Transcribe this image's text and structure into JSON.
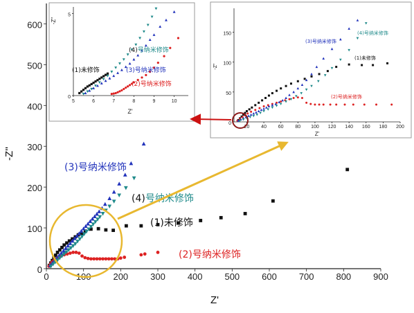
{
  "chart_data": [
    {
      "id": "main",
      "type": "scatter",
      "xlabel": "Z'",
      "ylabel": "-Z''",
      "xlim": [
        0,
        900
      ],
      "ylim": [
        0,
        650
      ],
      "xticks": [
        0,
        100,
        200,
        300,
        400,
        500,
        600,
        700,
        800,
        900
      ],
      "yticks": [
        0,
        100,
        200,
        300,
        400,
        500,
        600
      ],
      "grid": false,
      "annotations": [
        {
          "id": "a1",
          "num": "(1)",
          "text": "未修饰",
          "color": "#111111"
        },
        {
          "id": "a2",
          "num": "(2)",
          "text": "号纳米修饰",
          "color": "#dd2222"
        },
        {
          "id": "a3",
          "num": "(3)",
          "text": "号纳米修饰",
          "color": "#2233bb"
        },
        {
          "id": "a4",
          "num": "(4)",
          "text": "号纳米修饰",
          "color": "#1f8a8a"
        }
      ],
      "series": [
        {
          "id": "s1",
          "color": "#111111",
          "marker": "square",
          "x": [
            8,
            12,
            16,
            20,
            25,
            30,
            36,
            42,
            48,
            55,
            62,
            70,
            78,
            86,
            95,
            105,
            120,
            140,
            160,
            180,
            215,
            255,
            300,
            355,
            415,
            470,
            535,
            610,
            810
          ],
          "y": [
            8,
            14,
            20,
            27,
            33,
            40,
            46,
            52,
            58,
            63,
            68,
            73,
            78,
            83,
            87,
            92,
            97,
            98,
            95,
            94,
            105,
            105,
            108,
            112,
            118,
            125,
            135,
            166,
            243
          ]
        },
        {
          "id": "s2",
          "color": "#dd2222",
          "marker": "circle",
          "x": [
            7,
            11,
            15,
            20,
            26,
            33,
            40,
            48,
            56,
            64,
            72,
            80,
            88,
            96,
            104,
            112,
            120,
            128,
            136,
            144,
            152,
            160,
            168,
            176,
            184,
            192,
            200,
            210,
            255,
            265,
            300
          ],
          "y": [
            6,
            11,
            16,
            20,
            24,
            28,
            31,
            34,
            36,
            38,
            40,
            40,
            38,
            31,
            27,
            25,
            24,
            24,
            24,
            24,
            24,
            24,
            24,
            24,
            24,
            24,
            26,
            28,
            34,
            36,
            40
          ]
        },
        {
          "id": "s3",
          "color": "#2233bb",
          "marker": "triangle",
          "x": [
            10,
            16,
            22,
            28,
            34,
            40,
            46,
            52,
            58,
            64,
            70,
            76,
            82,
            88,
            94,
            100,
            106,
            112,
            118,
            124,
            130,
            136,
            142,
            150,
            158,
            170,
            182,
            196,
            212,
            228,
            262
          ],
          "y": [
            8,
            14,
            20,
            26,
            32,
            38,
            44,
            50,
            56,
            62,
            68,
            74,
            80,
            86,
            92,
            98,
            104,
            110,
            116,
            122,
            128,
            134,
            140,
            148,
            158,
            172,
            188,
            208,
            230,
            258,
            306
          ]
        },
        {
          "id": "s4",
          "color": "#1f8a8a",
          "marker": "triangle-down",
          "x": [
            12,
            18,
            24,
            30,
            36,
            42,
            48,
            54,
            60,
            66,
            72,
            78,
            84,
            90,
            96,
            102,
            108,
            114,
            120,
            126,
            132,
            138,
            144,
            152,
            160,
            170,
            182,
            196,
            214,
            236
          ],
          "y": [
            6,
            11,
            16,
            21,
            26,
            31,
            36,
            41,
            46,
            51,
            56,
            61,
            67,
            73,
            79,
            85,
            91,
            97,
            103,
            109,
            115,
            121,
            127,
            135,
            143,
            153,
            165,
            180,
            198,
            222
          ]
        }
      ]
    },
    {
      "id": "inset1",
      "type": "scatter",
      "xlabel": "Z'",
      "ylabel": "-Z''",
      "xlim": [
        5,
        10.7
      ],
      "ylim": [
        0,
        5.4
      ],
      "xticks": [
        5,
        6,
        7,
        8,
        9,
        10
      ],
      "yticks": [
        0,
        5
      ],
      "annotations": [
        {
          "id": "a1",
          "num": "(1)",
          "text": "未修饰",
          "color": "#111111"
        },
        {
          "id": "a2",
          "num": "(2)",
          "text": "号纳米修饰",
          "color": "#dd2222"
        },
        {
          "id": "a3",
          "num": "(3)",
          "text": "号纳米修饰",
          "color": "#2233bb"
        },
        {
          "id": "a4",
          "num": "(4)",
          "text": "号纳米修饰",
          "color": "#1f8a8a"
        }
      ],
      "series": [
        {
          "id": "s1",
          "color": "#111111",
          "marker": "square",
          "x": [
            5.3,
            5.4,
            5.5,
            5.6,
            5.7,
            5.8,
            5.9,
            6.0,
            6.1,
            6.2,
            6.3,
            6.4,
            6.5,
            6.6,
            6.7
          ],
          "y": [
            0.15,
            0.25,
            0.35,
            0.45,
            0.55,
            0.62,
            0.7,
            0.78,
            0.86,
            0.94,
            1.02,
            1.1,
            1.18,
            1.26,
            1.34
          ]
        },
        {
          "id": "s2",
          "color": "#dd2222",
          "marker": "circle",
          "x": [
            6.9,
            7.0,
            7.1,
            7.2,
            7.3,
            7.4,
            7.5,
            7.6,
            7.7,
            7.8,
            7.9,
            8.0,
            8.2,
            8.4,
            8.6,
            8.8,
            9.0,
            9.2,
            9.5,
            9.8,
            10.2
          ],
          "y": [
            0.1,
            0.12,
            0.15,
            0.2,
            0.26,
            0.32,
            0.4,
            0.48,
            0.56,
            0.64,
            0.72,
            0.8,
            0.95,
            1.1,
            1.25,
            1.45,
            1.7,
            2.0,
            2.4,
            2.9,
            3.5
          ]
        },
        {
          "id": "s3",
          "color": "#2233bb",
          "marker": "triangle",
          "x": [
            5.6,
            5.8,
            6.0,
            6.2,
            6.4,
            6.6,
            6.8,
            7.0,
            7.2,
            7.4,
            7.6,
            7.8,
            8.0,
            8.2,
            8.4,
            8.6,
            8.8,
            9.0,
            9.3,
            9.6,
            10.0
          ],
          "y": [
            0.15,
            0.3,
            0.45,
            0.6,
            0.75,
            0.9,
            1.05,
            1.2,
            1.38,
            1.56,
            1.75,
            1.95,
            2.2,
            2.45,
            2.75,
            3.05,
            3.4,
            3.7,
            4.2,
            4.6,
            5.1
          ]
        },
        {
          "id": "s4",
          "color": "#1f8a8a",
          "marker": "triangle-down",
          "x": [
            5.5,
            5.7,
            5.9,
            6.1,
            6.3,
            6.5,
            6.7,
            6.9,
            7.1,
            7.3,
            7.5,
            7.7,
            7.9,
            8.1,
            8.3,
            8.5,
            8.7,
            8.9,
            9.1
          ],
          "y": [
            0.1,
            0.25,
            0.4,
            0.6,
            0.8,
            1.0,
            1.2,
            1.45,
            1.7,
            1.95,
            2.2,
            2.5,
            2.8,
            3.1,
            3.5,
            3.9,
            4.3,
            4.8,
            5.3
          ]
        }
      ]
    },
    {
      "id": "inset2",
      "type": "scatter",
      "xlabel": "Z'",
      "ylabel": "-Z''",
      "xlim": [
        5,
        200
      ],
      "ylim": [
        0,
        190
      ],
      "xticks": [
        20,
        40,
        60,
        80,
        100,
        120,
        140,
        160,
        180,
        200
      ],
      "yticks": [
        0,
        50,
        100,
        150
      ],
      "annotations": [
        {
          "id": "a1",
          "num": "(1)",
          "text": "未修饰",
          "color": "#111111"
        },
        {
          "id": "a2",
          "num": "(2)",
          "text": "号纳米修饰",
          "color": "#dd2222"
        },
        {
          "id": "a3",
          "num": "(3)",
          "text": "号纳米修饰",
          "color": "#2233bb"
        },
        {
          "id": "a4",
          "num": "(4)",
          "text": "号纳米修饰",
          "color": "#1f8a8a"
        }
      ],
      "series": [
        {
          "id": "s1",
          "color": "#111111",
          "marker": "square",
          "x": [
            10,
            12,
            14,
            16,
            18,
            20,
            23,
            26,
            30,
            34,
            38,
            42,
            46,
            50,
            55,
            60,
            66,
            72,
            80,
            88,
            96,
            105,
            115,
            125,
            140,
            155,
            168,
            185
          ],
          "y": [
            3,
            6,
            9,
            12,
            15,
            18,
            21,
            24,
            28,
            32,
            36,
            40,
            44,
            48,
            52,
            56,
            60,
            64,
            68,
            72,
            76,
            80,
            85,
            92,
            96,
            95,
            95,
            98
          ]
        },
        {
          "id": "s2",
          "color": "#dd2222",
          "marker": "circle",
          "x": [
            9,
            12,
            15,
            18,
            21,
            25,
            30,
            35,
            40,
            45,
            50,
            55,
            60,
            65,
            70,
            75,
            80,
            85,
            90,
            95,
            100,
            105,
            110,
            118,
            125,
            135,
            145,
            158,
            172,
            190
          ],
          "y": [
            2,
            5,
            8,
            11,
            14,
            17,
            20,
            23,
            26,
            28,
            30,
            32,
            34,
            36,
            38,
            40,
            41,
            40,
            32,
            30,
            29,
            29,
            29,
            29,
            29,
            29,
            29,
            29,
            29,
            29
          ]
        },
        {
          "id": "s3",
          "color": "#2233bb",
          "marker": "triangle",
          "x": [
            10,
            13,
            16,
            19,
            22,
            25,
            28,
            31,
            34,
            37,
            40,
            43,
            46,
            50,
            54,
            58,
            62,
            66,
            70,
            75,
            80,
            85,
            90,
            96,
            102,
            110,
            120,
            130,
            140,
            150
          ],
          "y": [
            2,
            4,
            6,
            8,
            10,
            12,
            14,
            16,
            18,
            20,
            22,
            24,
            26,
            28,
            30,
            33,
            36,
            40,
            45,
            50,
            56,
            62,
            70,
            80,
            92,
            106,
            122,
            138,
            156,
            170
          ]
        },
        {
          "id": "s4",
          "color": "#1f8a8a",
          "marker": "triangle-down",
          "x": [
            12,
            16,
            20,
            24,
            28,
            32,
            36,
            40,
            45,
            50,
            55,
            60,
            66,
            72,
            78,
            84,
            90,
            96,
            104,
            112,
            120,
            130,
            140,
            150,
            160
          ],
          "y": [
            2,
            4,
            6,
            8,
            10,
            12,
            15,
            18,
            21,
            24,
            27,
            30,
            34,
            38,
            43,
            48,
            54,
            60,
            68,
            78,
            90,
            104,
            120,
            140,
            165
          ]
        }
      ]
    }
  ]
}
